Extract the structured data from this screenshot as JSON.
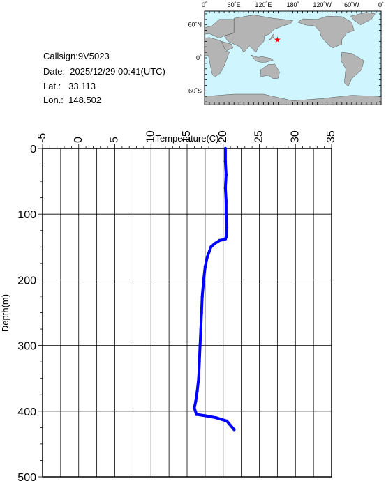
{
  "header": {
    "callsign": "Callsign:9V5023",
    "date": "Date:  2025/12/29 00:41(UTC)",
    "lat": "Lat.:   33.113",
    "lon": "Lon.:  148.502"
  },
  "map": {
    "top_labels": [
      "0˚",
      "60˚E",
      "120˚E",
      "180˚",
      "120˚W",
      "60˚W",
      "0˚"
    ],
    "side_labels": [
      "60˚N",
      "0˚",
      "60˚S"
    ],
    "marker": {
      "lat": 33.113,
      "lon": 148.502
    },
    "ocean_color": "#cff6ff",
    "land_color": "#b4b4b4",
    "marker_color": "#ff0000"
  },
  "chart_data": {
    "type": "line",
    "xlabel": "Temperature(C)",
    "ylabel": "Depth(m)",
    "xlim": [
      -5,
      35
    ],
    "ylim": [
      500,
      0
    ],
    "x_ticks": [
      -5,
      0,
      5,
      10,
      15,
      20,
      25,
      30,
      35
    ],
    "y_ticks": [
      0,
      100,
      200,
      300,
      400,
      500
    ],
    "grid": true,
    "line_color": "#0000ff",
    "series": [
      {
        "x": [
          20.3,
          20.3,
          20.4,
          20.3,
          20.4,
          20.4,
          20.5,
          20.4,
          20.3,
          19.5,
          18.8,
          18.3,
          17.8,
          17.5,
          17.3,
          17.1,
          17.0,
          16.9,
          16.8,
          16.7,
          16.6,
          16.4,
          16.2,
          16.0,
          16.3,
          17.5,
          19.0,
          20.5,
          21.5
        ],
        "y": [
          0,
          20,
          40,
          60,
          80,
          100,
          120,
          135,
          138,
          140,
          145,
          150,
          165,
          180,
          200,
          225,
          250,
          275,
          300,
          325,
          350,
          370,
          385,
          395,
          405,
          407,
          410,
          415,
          428
        ]
      }
    ]
  }
}
